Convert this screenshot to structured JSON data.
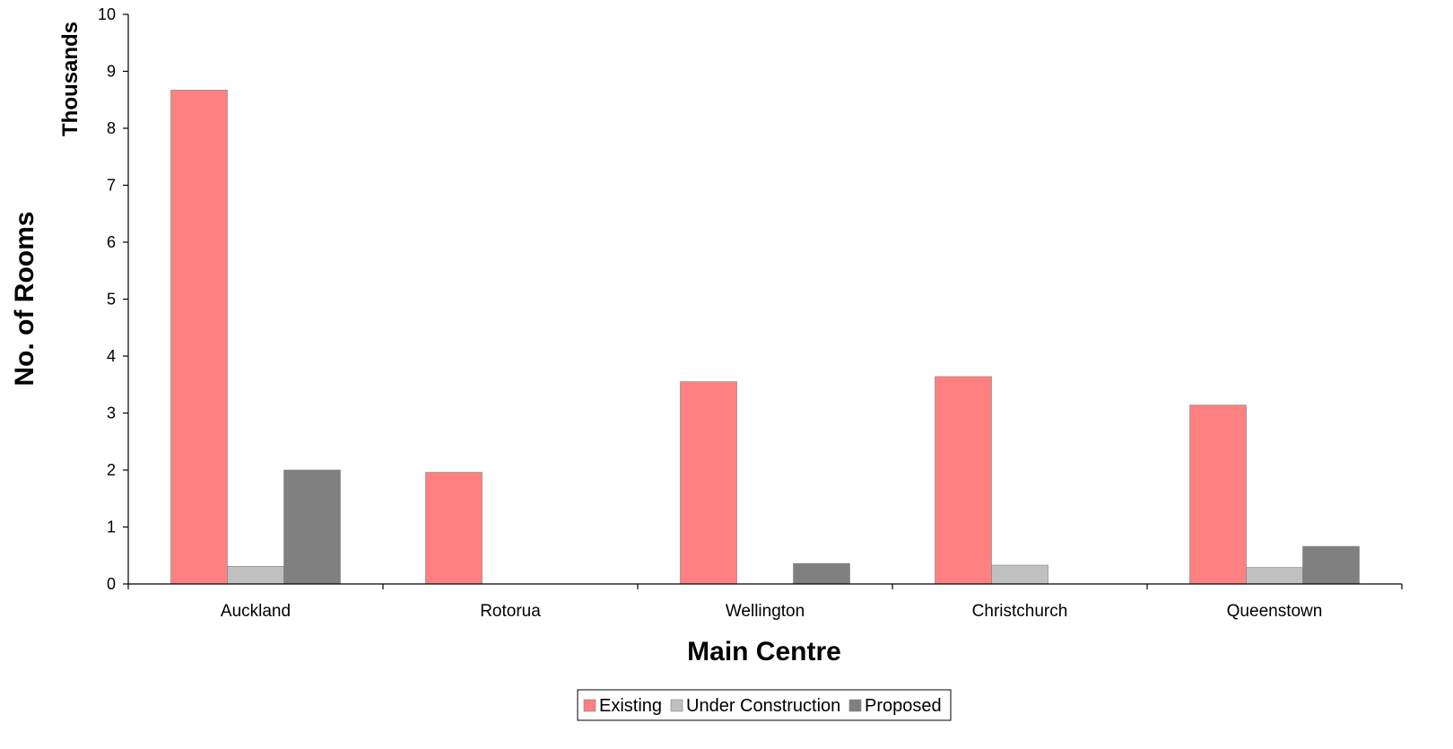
{
  "chart_data": {
    "type": "bar",
    "categories": [
      "Auckland",
      "Rotorua",
      "Wellington",
      "Christchurch",
      "Queenstown"
    ],
    "series": [
      {
        "name": "Existing",
        "color": "#ff8080",
        "values": [
          8.67,
          1.96,
          3.55,
          3.64,
          3.14
        ]
      },
      {
        "name": "Under Construction",
        "color": "#c0c0c0",
        "values": [
          0.31,
          0,
          0,
          0.33,
          0.29
        ]
      },
      {
        "name": "Proposed",
        "color": "#808080",
        "values": [
          2.0,
          0,
          0.36,
          0,
          0.66
        ]
      }
    ],
    "xlabel": "Main Centre",
    "ylabel": "No. of Rooms",
    "yunit_label": "Thousands",
    "ylim": [
      0,
      10
    ],
    "yticks": [
      0,
      1,
      2,
      3,
      4,
      5,
      6,
      7,
      8,
      9,
      10
    ],
    "grid": false,
    "legend_position": "bottom"
  }
}
